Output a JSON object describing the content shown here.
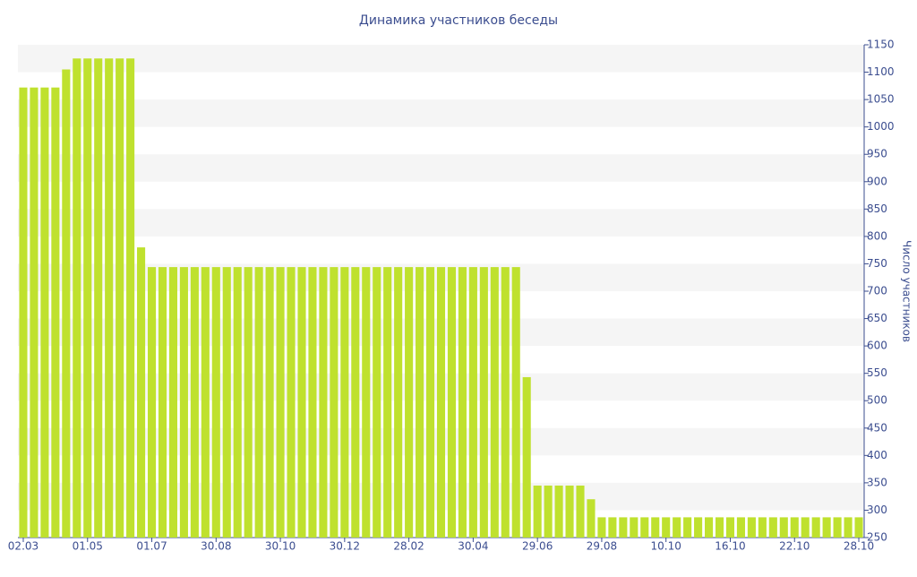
{
  "chart_data": {
    "type": "bar",
    "title": "Динамика участников беседы",
    "y_axis_label": "Число участников",
    "y_axis_side": "right",
    "categories": [
      "02.03",
      null,
      null,
      null,
      null,
      null,
      "01.05",
      null,
      null,
      null,
      null,
      null,
      "01.07",
      null,
      null,
      null,
      null,
      null,
      "30.08",
      null,
      null,
      null,
      null,
      null,
      "30.10",
      null,
      null,
      null,
      null,
      null,
      "30.12",
      null,
      null,
      null,
      null,
      null,
      "28.02",
      null,
      null,
      null,
      null,
      null,
      "30.04",
      null,
      null,
      null,
      null,
      null,
      "29.06",
      null,
      null,
      null,
      null,
      null,
      "29.08",
      null,
      null,
      null,
      null,
      null,
      "10.10",
      null,
      null,
      null,
      null,
      null,
      "16.10",
      null,
      null,
      null,
      null,
      null,
      "22.10",
      null,
      null,
      null,
      null,
      null,
      "28.10"
    ],
    "values": [
      1072,
      1072,
      1072,
      1072,
      1105,
      1125,
      1125,
      1125,
      1125,
      1125,
      1125,
      780,
      744,
      744,
      744,
      744,
      744,
      744,
      744,
      744,
      744,
      744,
      744,
      744,
      744,
      744,
      744,
      744,
      744,
      744,
      744,
      744,
      744,
      744,
      744,
      744,
      744,
      744,
      744,
      744,
      744,
      744,
      744,
      744,
      744,
      744,
      744,
      543,
      345,
      345,
      345,
      345,
      345,
      320,
      287,
      287,
      287,
      287,
      287,
      287,
      287,
      287,
      287,
      287,
      287,
      287,
      287,
      287,
      287,
      287,
      287,
      287,
      287,
      287,
      287,
      287,
      287,
      287,
      287
    ],
    "color": "#bfe12e",
    "ylim": [
      250,
      1150
    ],
    "yticks": [
      250,
      300,
      350,
      400,
      450,
      500,
      550,
      600,
      650,
      700,
      750,
      800,
      850,
      900,
      950,
      1000,
      1050,
      1100,
      1150
    ],
    "grid": "bands"
  }
}
